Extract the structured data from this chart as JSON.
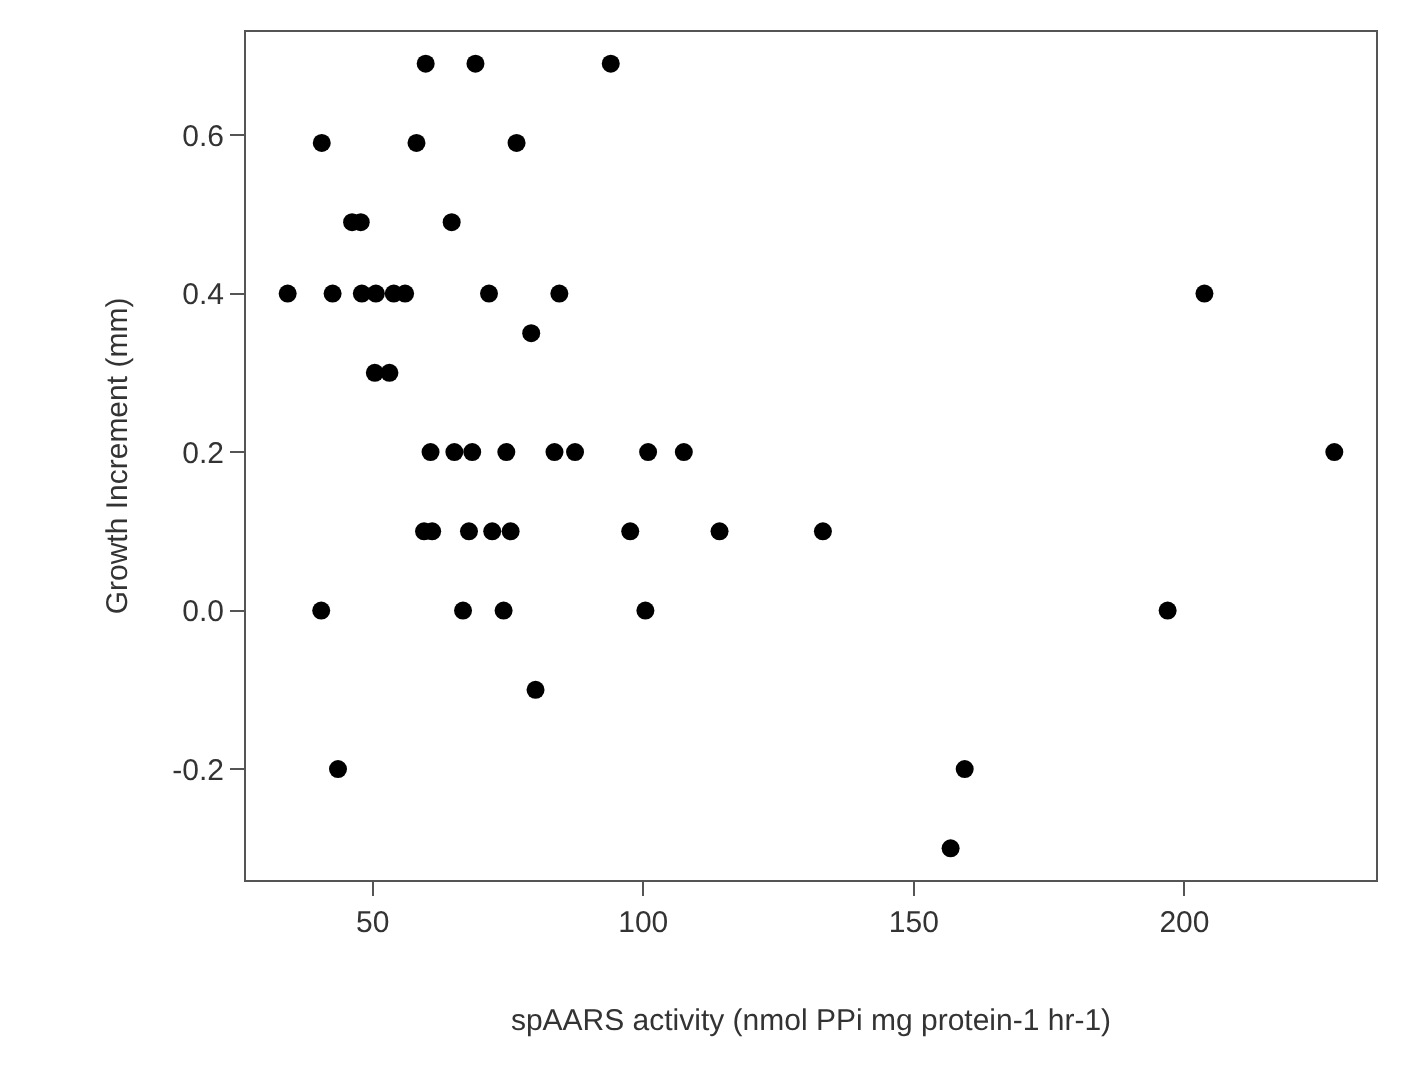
{
  "chart_data": {
    "type": "scatter",
    "xlabel": "spAARS activity (nmol PPi mg protein-1 hr-1)",
    "ylabel": "Growth Increment (mm)",
    "x": [
      59.8,
      69.0,
      94.0,
      40.6,
      58.1,
      76.6,
      46.2,
      47.8,
      64.6,
      34.3,
      42.6,
      48.0,
      50.6,
      53.9,
      56.0,
      71.5,
      84.5,
      203.7,
      79.3,
      50.4,
      53.1,
      60.7,
      65.1,
      68.4,
      74.7,
      83.6,
      87.4,
      100.9,
      107.5,
      227.7,
      59.5,
      61.0,
      67.8,
      72.1,
      75.5,
      97.6,
      114.1,
      133.2,
      40.5,
      66.7,
      74.2,
      100.4,
      196.9,
      80.1,
      43.6,
      159.4,
      156.8
    ],
    "series": [
      {
        "color": "#000000",
        "values": [
          0.69,
          0.69,
          0.69,
          0.59,
          0.59,
          0.59,
          0.49,
          0.49,
          0.49,
          0.4,
          0.4,
          0.4,
          0.4,
          0.4,
          0.4,
          0.4,
          0.4,
          0.4,
          0.35,
          0.3,
          0.3,
          0.2,
          0.2,
          0.2,
          0.2,
          0.2,
          0.2,
          0.2,
          0.2,
          0.2,
          0.1,
          0.1,
          0.1,
          0.1,
          0.1,
          0.1,
          0.1,
          0.1,
          0.0,
          0.0,
          0.0,
          0.0,
          0.0,
          -0.1,
          -0.2,
          -0.2,
          -0.3
        ]
      }
    ],
    "xlim": [
      26.6,
      235.4
    ],
    "ylim": [
      -0.34,
      0.73
    ],
    "xticks": [
      50,
      100,
      150,
      200
    ],
    "yticks": [
      {
        "value": -0.2,
        "label": "-0.2"
      },
      {
        "value": 0.0,
        "label": "0.0"
      },
      {
        "value": 0.2,
        "label": "0.2"
      },
      {
        "value": 0.4,
        "label": "0.4"
      },
      {
        "value": 0.6,
        "label": "0.6"
      }
    ],
    "marker": "circle"
  }
}
